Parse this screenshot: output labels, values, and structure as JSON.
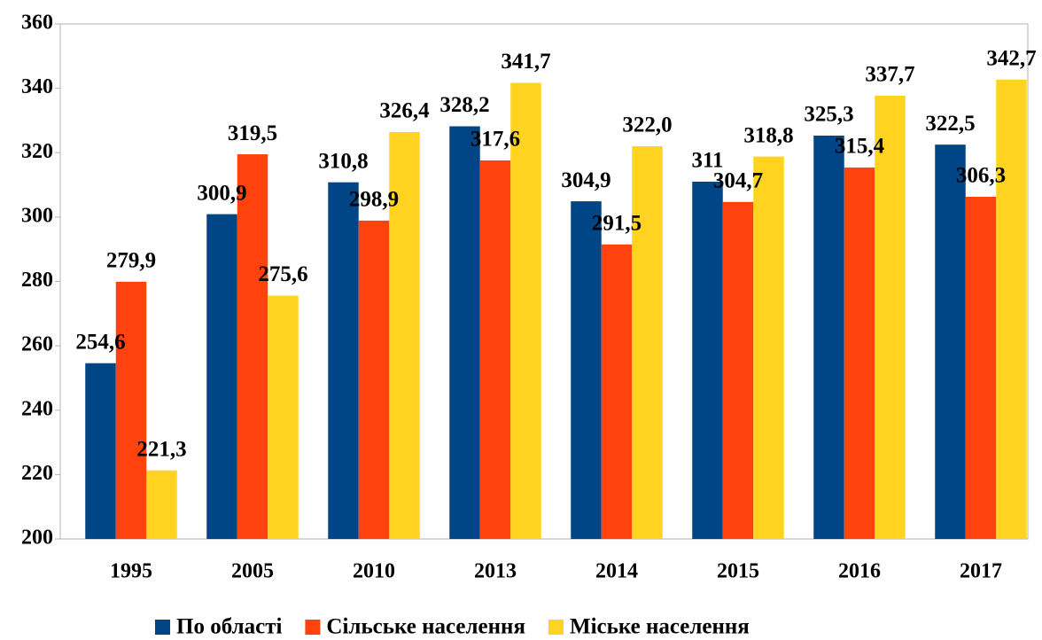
{
  "chart_data": {
    "type": "bar",
    "categories": [
      "1995",
      "2005",
      "2010",
      "2013",
      "2014",
      "2015",
      "2016",
      "2017"
    ],
    "series": [
      {
        "name": "По області",
        "color": "#004586",
        "values": [
          254.6,
          300.9,
          310.8,
          328.2,
          304.9,
          311,
          325.3,
          322.5
        ],
        "value_labels": [
          "254,6",
          "300,9",
          "310,8",
          "328,2",
          "304,9",
          "311",
          "325,3",
          "322,5"
        ]
      },
      {
        "name": "Сільське населення",
        "color": "#ff420e",
        "values": [
          279.9,
          319.5,
          298.9,
          317.6,
          291.5,
          304.7,
          315.4,
          306.3
        ],
        "value_labels": [
          "279,9",
          "319,5",
          "298,9",
          "317,6",
          "291,5",
          "304,7",
          "315,4",
          "306,3"
        ]
      },
      {
        "name": "Міське населення",
        "color": "#ffd320",
        "values": [
          221.3,
          275.6,
          326.4,
          341.7,
          322.0,
          318.8,
          337.7,
          342.7
        ],
        "value_labels": [
          "221,3",
          "275,6",
          "326,4",
          "341,7",
          "322,0",
          "318,8",
          "337,7",
          "342,7"
        ]
      }
    ],
    "ylim": [
      200,
      360
    ],
    "yticks": [
      200,
      220,
      240,
      260,
      280,
      300,
      320,
      340,
      360
    ],
    "grid": false,
    "legend": "bottom"
  }
}
